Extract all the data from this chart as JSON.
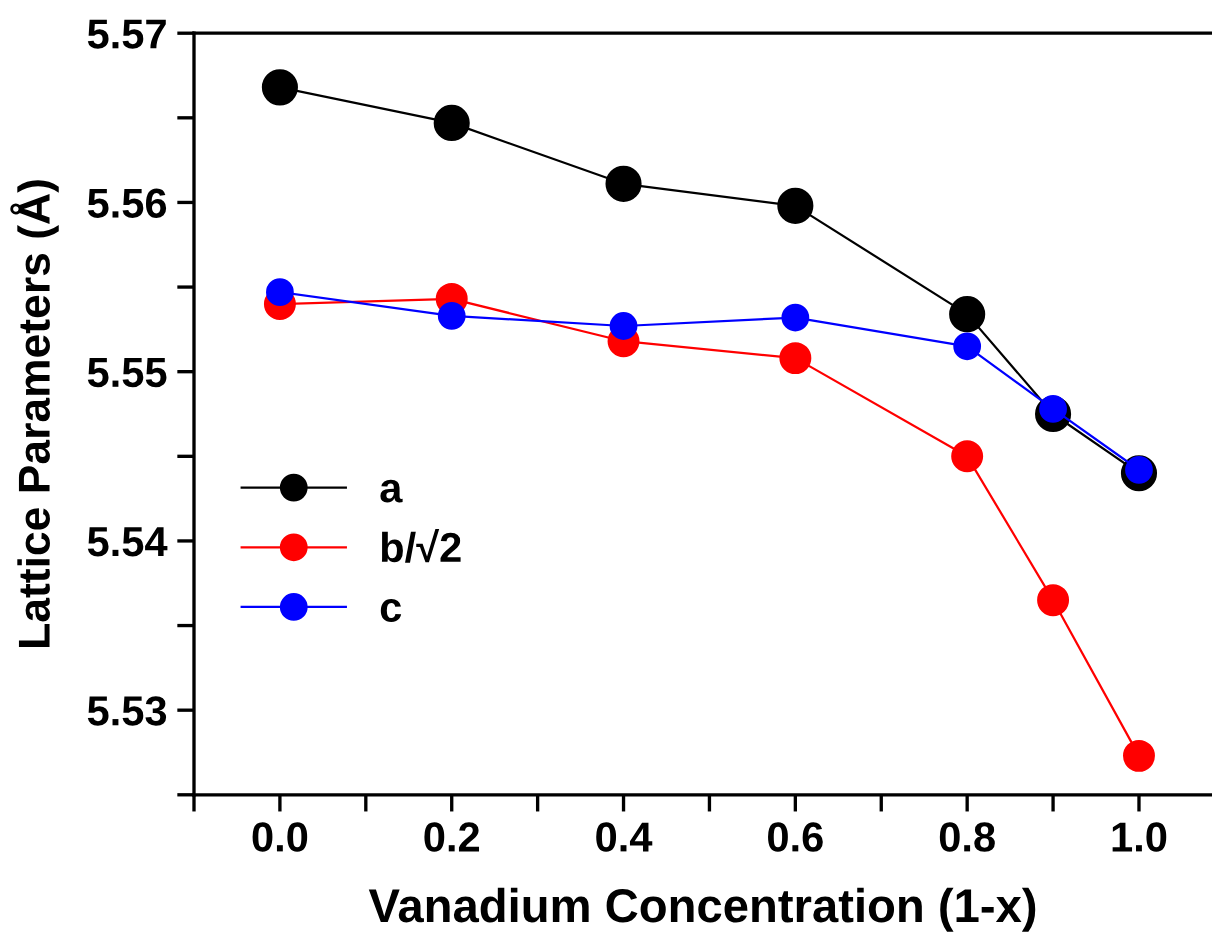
{
  "chart_data": {
    "type": "line",
    "xlabel": "Vanadium Concentration (1-x)",
    "ylabel": "Lattice Parameters (Å)",
    "x": [
      0.0,
      0.2,
      0.4,
      0.6,
      0.8,
      0.9,
      1.0
    ],
    "series": [
      {
        "name": "a",
        "color": "#000000",
        "values": [
          5.5668,
          5.5647,
          5.5611,
          5.5598,
          5.5534,
          5.5475,
          5.544
        ]
      },
      {
        "name": "b/√2",
        "color": "#ff0000",
        "values": [
          5.554,
          5.5543,
          5.5518,
          5.5508,
          5.545,
          5.5365,
          5.5273
        ]
      },
      {
        "name": "c",
        "color": "#0000ff",
        "values": [
          5.5547,
          5.5533,
          5.5527,
          5.5532,
          5.5515,
          5.5478,
          5.5442
        ]
      }
    ],
    "xlim": [
      -0.1,
      1.085
    ],
    "ylim": [
      5.525,
      5.57
    ],
    "xticks": [
      {
        "value": -0.1,
        "label": null
      },
      {
        "value": 0.0,
        "label": "0.0"
      },
      {
        "value": 0.1,
        "label": null
      },
      0.2,
      {
        "value": 0.3,
        "label": null
      },
      0.4,
      {
        "value": 0.5,
        "label": null
      },
      0.6,
      {
        "value": 0.7,
        "label": null
      },
      0.8,
      {
        "value": 0.9,
        "label": null
      },
      {
        "value": 1.0,
        "label": "1.0"
      }
    ],
    "yticks": [
      {
        "value": 5.525,
        "label": null
      },
      5.53,
      {
        "value": 5.535,
        "label": null
      },
      5.54,
      {
        "value": 5.545,
        "label": null
      },
      5.55,
      {
        "value": 5.555,
        "label": null
      },
      5.56,
      {
        "value": 5.565,
        "label": null
      },
      5.57
    ],
    "marker": "circle",
    "line_style": "solid",
    "grid": false,
    "legend": "left"
  }
}
